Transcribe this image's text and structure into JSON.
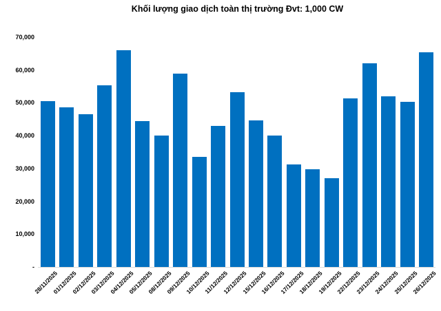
{
  "chart_data": {
    "type": "bar",
    "title": "Khối lượng giao dịch toàn thị trường Đvt: 1,000 CW",
    "categories": [
      "28/11/2025",
      "01/12/2025",
      "02/12/2025",
      "03/12/2025",
      "04/12/2025",
      "05/12/2025",
      "08/12/2025",
      "09/12/2025",
      "10/12/2025",
      "11/12/2025",
      "12/12/2025",
      "15/12/2025",
      "16/12/2025",
      "17/12/2025",
      "18/12/2025",
      "19/12/2025",
      "22/12/2025",
      "23/12/2025",
      "24/12/2025",
      "25/12/2025",
      "26/12/2025"
    ],
    "values": [
      50600,
      48700,
      46600,
      55400,
      66000,
      44500,
      40100,
      58900,
      33500,
      42900,
      53200,
      44700,
      40100,
      31200,
      29800,
      27100,
      51400,
      62100,
      51900,
      50300,
      65300
    ],
    "xlabel": "",
    "ylabel": "",
    "ylim": [
      0,
      70000
    ],
    "y_ticks": [
      70000,
      60000,
      50000,
      40000,
      30000,
      20000,
      10000,
      0
    ],
    "y_tick_labels": [
      "70,000",
      "60,000",
      "50,000",
      "40,000",
      "30,000",
      "20,000",
      "10,000",
      "-"
    ],
    "grid": false,
    "legend_position": "none",
    "bar_color": "#0070C0",
    "axis_line_color": "#D9D9D9",
    "text_color": "#000000"
  }
}
